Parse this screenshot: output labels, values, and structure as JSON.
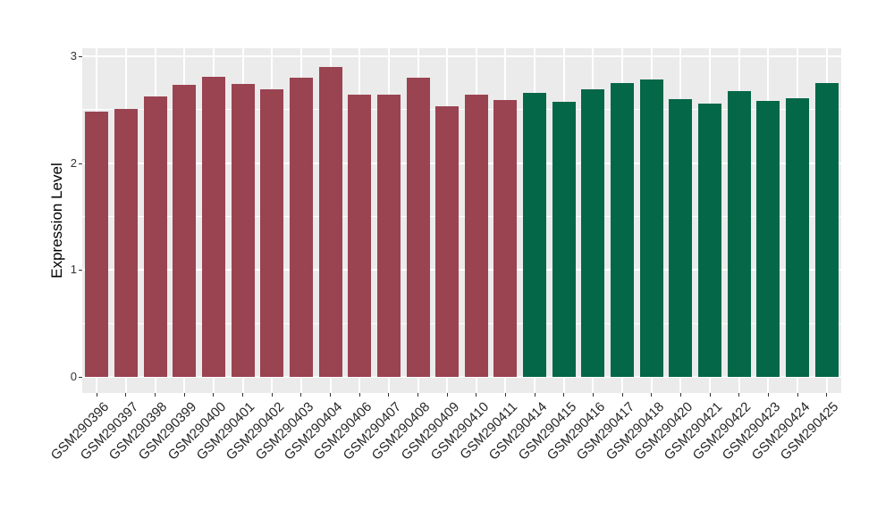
{
  "chart_data": {
    "type": "bar",
    "title": "",
    "xlabel": "",
    "ylabel": "Expression Level",
    "ylim": [
      0,
      3.07
    ],
    "ytick_values": [
      0,
      1,
      2,
      3
    ],
    "ytick_labels": [
      "0",
      "1",
      "2",
      "3"
    ],
    "yminor_values": [
      0.5,
      1.5,
      2.5
    ],
    "grid": "white major and minor horizontal lines plus vertical category lines on grey panel",
    "legend": "none",
    "x_tick_label_rotation_deg": -45,
    "colors": {
      "panel_background": "#EBEBEB",
      "page_background": "#FFFFFF",
      "gridline": "#FFFFFF",
      "tick_label": "#333333",
      "axis_title": "#000000",
      "group_maroon": "#9A4351",
      "group_green": "#046748"
    },
    "categories": [
      "GSM290396",
      "GSM290397",
      "GSM290398",
      "GSM290399",
      "GSM290400",
      "GSM290401",
      "GSM290402",
      "GSM290403",
      "GSM290404",
      "GSM290406",
      "GSM290407",
      "GSM290408",
      "GSM290409",
      "GSM290410",
      "GSM290411",
      "GSM290414",
      "GSM290415",
      "GSM290416",
      "GSM290417",
      "GSM290418",
      "GSM290420",
      "GSM290421",
      "GSM290422",
      "GSM290423",
      "GSM290424",
      "GSM290425"
    ],
    "values": [
      2.48,
      2.51,
      2.62,
      2.73,
      2.81,
      2.74,
      2.69,
      2.8,
      2.9,
      2.64,
      2.64,
      2.8,
      2.53,
      2.64,
      2.59,
      2.66,
      2.57,
      2.69,
      2.75,
      2.78,
      2.6,
      2.56,
      2.67,
      2.58,
      2.61,
      2.75
    ],
    "bar_groups": [
      "maroon",
      "maroon",
      "maroon",
      "maroon",
      "maroon",
      "maroon",
      "maroon",
      "maroon",
      "maroon",
      "maroon",
      "maroon",
      "maroon",
      "maroon",
      "maroon",
      "maroon",
      "green",
      "green",
      "green",
      "green",
      "green",
      "green",
      "green",
      "green",
      "green",
      "green",
      "green"
    ]
  }
}
